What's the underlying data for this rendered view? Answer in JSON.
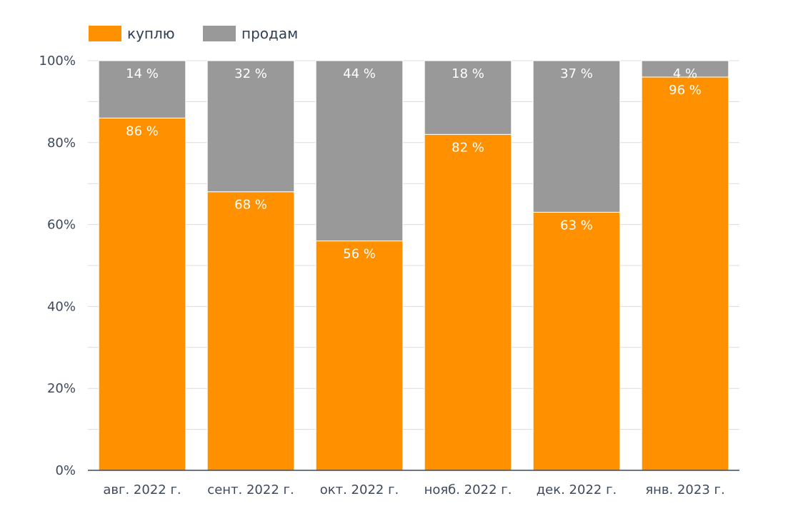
{
  "chart_data": {
    "type": "bar",
    "stacked": true,
    "categories": [
      "авг. 2022 г.",
      "сент. 2022 г.",
      "окт. 2022 г.",
      "нояб. 2022 г.",
      "дек. 2022 г.",
      "янв. 2023 г."
    ],
    "series": [
      {
        "name": "куплю",
        "values": [
          86,
          68,
          56,
          82,
          63,
          96
        ],
        "labels": [
          "86 %",
          "68 %",
          "56 %",
          "82 %",
          "63 %",
          "96 %"
        ],
        "color": "#ff9100"
      },
      {
        "name": "продам",
        "values": [
          14,
          32,
          44,
          18,
          37,
          4
        ],
        "labels": [
          "14 %",
          "32 %",
          "44 %",
          "18 %",
          "37 %",
          "4 %"
        ],
        "color": "#999999"
      }
    ],
    "ylim": [
      0,
      100
    ],
    "yticks": [
      "0%",
      "20%",
      "40%",
      "60%",
      "80%",
      "100%"
    ],
    "ytick_values": [
      0,
      20,
      40,
      60,
      80,
      100
    ],
    "grid": true,
    "legend_position": "top-left",
    "label_color": "#ffffff",
    "axis_color": "#3c4a5e"
  }
}
